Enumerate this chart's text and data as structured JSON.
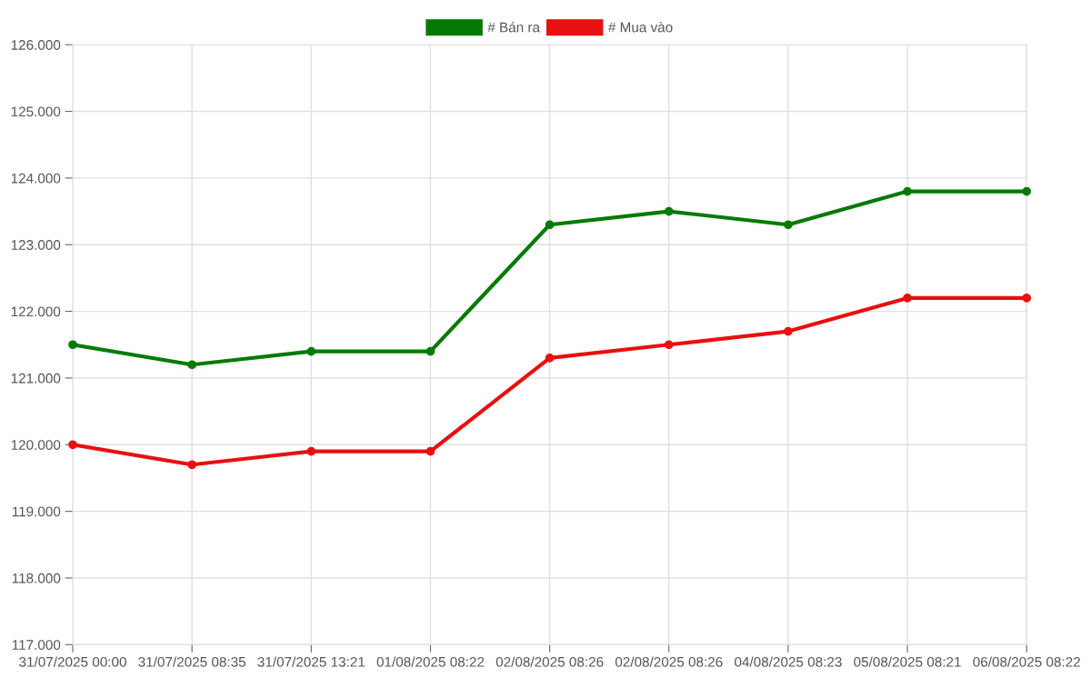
{
  "chart_data": {
    "type": "line",
    "categories": [
      "31/07/2025 00:00",
      "31/07/2025 08:35",
      "31/07/2025 13:21",
      "01/08/2025 08:22",
      "02/08/2025 08:26",
      "02/08/2025 08:26",
      "04/08/2025 08:23",
      "05/08/2025 08:21",
      "06/08/2025 08:22"
    ],
    "series": [
      {
        "name": "# Bán ra",
        "color": "#047a04",
        "values": [
          121500,
          121200,
          121400,
          121400,
          123300,
          123500,
          123300,
          123800,
          123800
        ]
      },
      {
        "name": "# Mua vào",
        "color": "#e81010",
        "values": [
          120000,
          119700,
          119900,
          119900,
          121300,
          121500,
          121700,
          122200,
          122200
        ]
      }
    ],
    "ylim": [
      117000,
      126000
    ],
    "yticks": [
      {
        "value": 117000,
        "label": "117.000"
      },
      {
        "value": 118000,
        "label": "118.000"
      },
      {
        "value": 119000,
        "label": "119.000"
      },
      {
        "value": 120000,
        "label": "120.000"
      },
      {
        "value": 121000,
        "label": "121.000"
      },
      {
        "value": 122000,
        "label": "122.000"
      },
      {
        "value": 123000,
        "label": "123.000"
      },
      {
        "value": 124000,
        "label": "124.000"
      },
      {
        "value": 125000,
        "label": "125.000"
      },
      {
        "value": 126000,
        "label": "126.000"
      }
    ],
    "grid": true,
    "legend": "top",
    "marker": "circle",
    "line_style": "solid"
  }
}
